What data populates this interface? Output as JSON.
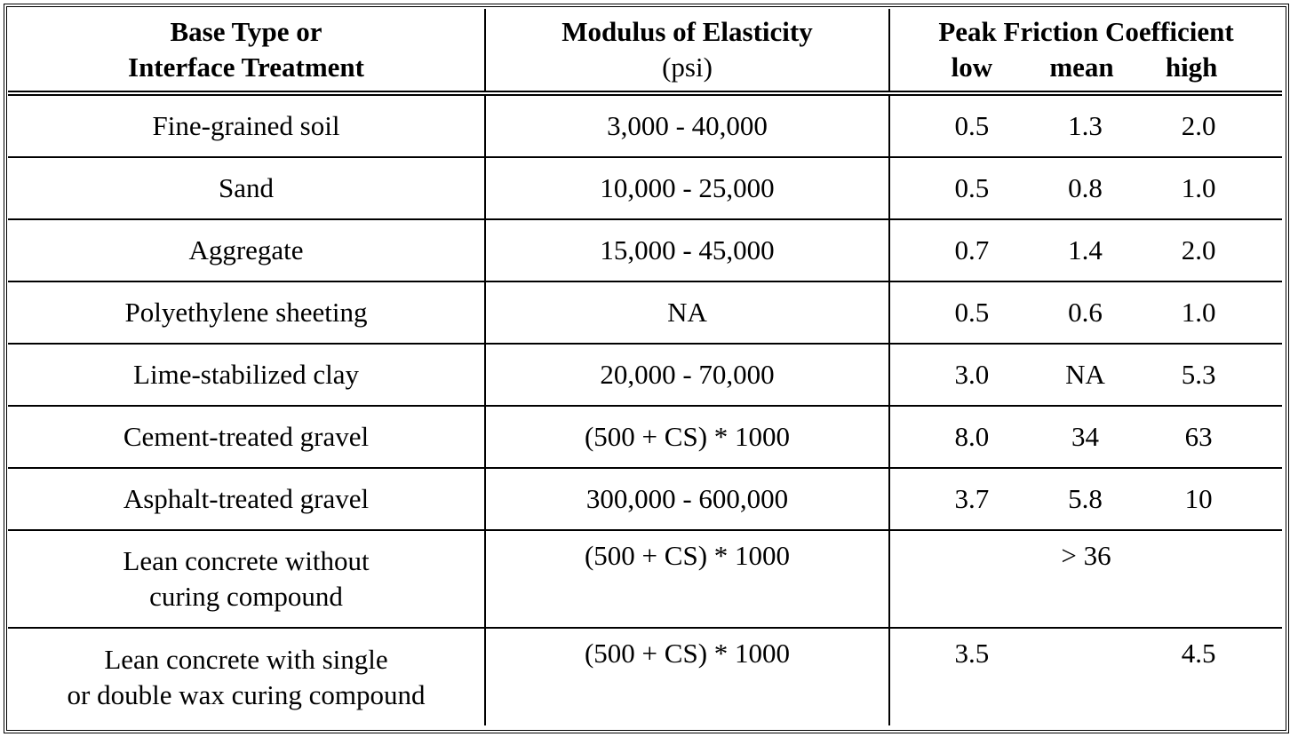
{
  "header": {
    "col1_line1": "Base Type or",
    "col1_line2": "Interface Treatment",
    "col2_line1": "Modulus of Elasticity",
    "col2_line2": "(psi)",
    "col3_line1": "Peak Friction Coefficient",
    "col3_low": "low",
    "col3_mean": "mean",
    "col3_high": "high"
  },
  "rows": [
    {
      "base": "Fine-grained soil",
      "modulus": "3,000  -  40,000",
      "low": "0.5",
      "mean": "1.3",
      "high": "2.0"
    },
    {
      "base": "Sand",
      "modulus": "10,000  - 25,000",
      "low": "0.5",
      "mean": "0.8",
      "high": "1.0"
    },
    {
      "base": "Aggregate",
      "modulus": "15,000  - 45,000",
      "low": "0.7",
      "mean": "1.4",
      "high": "2.0"
    },
    {
      "base": "Polyethylene sheeting",
      "modulus": "NA",
      "low": "0.5",
      "mean": "0.6",
      "high": "1.0"
    },
    {
      "base": "Lime-stabilized clay",
      "modulus": "20,000  - 70,000",
      "low": "3.0",
      "mean": "NA",
      "high": "5.3"
    },
    {
      "base": "Cement-treated gravel",
      "modulus": "(500 + CS) * 1000",
      "low": "8.0",
      "mean": "34",
      "high": "63"
    },
    {
      "base": "Asphalt-treated gravel",
      "modulus": "300,000  - 600,000",
      "low": "3.7",
      "mean": "5.8",
      "high": "10"
    }
  ],
  "row8": {
    "base_line1": "Lean concrete without",
    "base_line2": "curing compound",
    "modulus": "(500 + CS) * 1000",
    "friction": "> 36"
  },
  "row9": {
    "base_line1": "Lean concrete with single",
    "base_line2": "or double wax curing compound",
    "modulus": "(500 + CS) * 1000",
    "low": "3.5",
    "high": "4.5"
  }
}
